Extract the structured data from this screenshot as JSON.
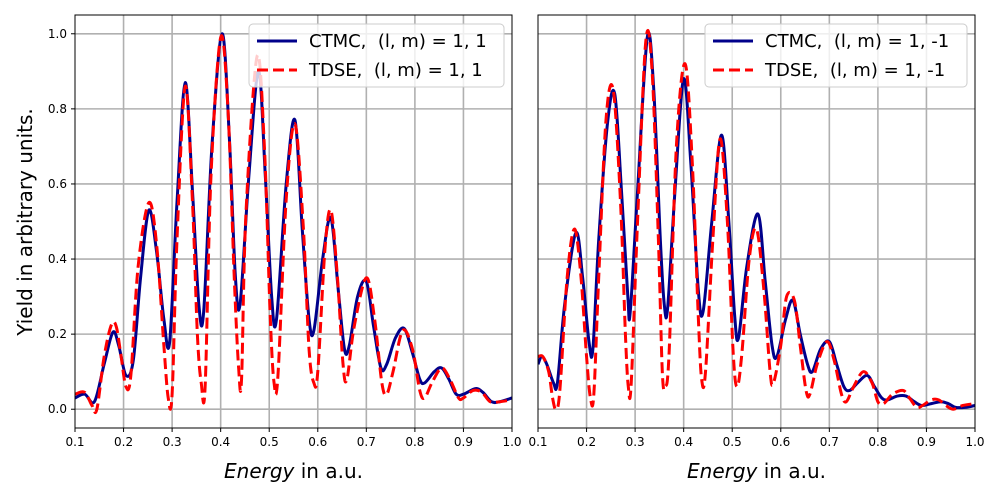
{
  "figure": {
    "ylabel": "Yield in arbitrary units."
  },
  "chart_data": [
    {
      "type": "line",
      "xlabel": {
        "italic": "Energy",
        "rest": " in a.u."
      },
      "ylabel": "Yield in arbitrary units.",
      "xlim": [
        0.1,
        1.0
      ],
      "ylim": [
        -0.05,
        1.05
      ],
      "xticks": [
        "0.1",
        "0.2",
        "0.3",
        "0.4",
        "0.5",
        "0.6",
        "0.7",
        "0.8",
        "0.9",
        "1.0"
      ],
      "yticks": [
        "0.0",
        "0.2",
        "0.4",
        "0.6",
        "0.8",
        "1.0"
      ],
      "grid": true,
      "legend_position": "top-right",
      "series": [
        {
          "name": "CTMC,  (l, m) = 1, 1",
          "color": "#00008b",
          "style": "solid",
          "points": [
            [
              0.1,
              0.03
            ],
            [
              0.12,
              0.04
            ],
            [
              0.14,
              0.02
            ],
            [
              0.16,
              0.12
            ],
            [
              0.178,
              0.205
            ],
            [
              0.19,
              0.17
            ],
            [
              0.205,
              0.09
            ],
            [
              0.22,
              0.13
            ],
            [
              0.235,
              0.35
            ],
            [
              0.252,
              0.53
            ],
            [
              0.268,
              0.42
            ],
            [
              0.283,
              0.24
            ],
            [
              0.295,
              0.18
            ],
            [
              0.31,
              0.55
            ],
            [
              0.327,
              0.87
            ],
            [
              0.342,
              0.58
            ],
            [
              0.355,
              0.28
            ],
            [
              0.365,
              0.26
            ],
            [
              0.382,
              0.7
            ],
            [
              0.403,
              1.0
            ],
            [
              0.418,
              0.72
            ],
            [
              0.43,
              0.36
            ],
            [
              0.44,
              0.28
            ],
            [
              0.458,
              0.62
            ],
            [
              0.478,
              0.9
            ],
            [
              0.492,
              0.62
            ],
            [
              0.505,
              0.3
            ],
            [
              0.515,
              0.24
            ],
            [
              0.535,
              0.6
            ],
            [
              0.553,
              0.77
            ],
            [
              0.568,
              0.48
            ],
            [
              0.582,
              0.24
            ],
            [
              0.592,
              0.21
            ],
            [
              0.61,
              0.4
            ],
            [
              0.627,
              0.51
            ],
            [
              0.642,
              0.32
            ],
            [
              0.655,
              0.16
            ],
            [
              0.665,
              0.17
            ],
            [
              0.682,
              0.3
            ],
            [
              0.7,
              0.34
            ],
            [
              0.715,
              0.22
            ],
            [
              0.73,
              0.11
            ],
            [
              0.742,
              0.12
            ],
            [
              0.76,
              0.19
            ],
            [
              0.778,
              0.215
            ],
            [
              0.795,
              0.15
            ],
            [
              0.81,
              0.08
            ],
            [
              0.82,
              0.07
            ],
            [
              0.84,
              0.1
            ],
            [
              0.855,
              0.11
            ],
            [
              0.87,
              0.08
            ],
            [
              0.885,
              0.04
            ],
            [
              0.9,
              0.04
            ],
            [
              0.925,
              0.055
            ],
            [
              0.94,
              0.045
            ],
            [
              0.958,
              0.02
            ],
            [
              0.975,
              0.02
            ],
            [
              1.0,
              0.03
            ]
          ]
        },
        {
          "name": "TDSE,  (l, m) = 1, 1",
          "color": "#ff0000",
          "style": "dashed",
          "points": [
            [
              0.1,
              0.04
            ],
            [
              0.12,
              0.045
            ],
            [
              0.135,
              0.01
            ],
            [
              0.145,
              0.0
            ],
            [
              0.16,
              0.14
            ],
            [
              0.175,
              0.225
            ],
            [
              0.185,
              0.22
            ],
            [
              0.195,
              0.14
            ],
            [
              0.205,
              0.06
            ],
            [
              0.215,
              0.09
            ],
            [
              0.23,
              0.38
            ],
            [
              0.252,
              0.55
            ],
            [
              0.268,
              0.44
            ],
            [
              0.283,
              0.17
            ],
            [
              0.292,
              0.03
            ],
            [
              0.3,
              0.04
            ],
            [
              0.31,
              0.45
            ],
            [
              0.327,
              0.86
            ],
            [
              0.342,
              0.55
            ],
            [
              0.352,
              0.2
            ],
            [
              0.36,
              0.07
            ],
            [
              0.368,
              0.06
            ],
            [
              0.38,
              0.62
            ],
            [
              0.4,
              0.99
            ],
            [
              0.415,
              0.8
            ],
            [
              0.428,
              0.35
            ],
            [
              0.437,
              0.11
            ],
            [
              0.443,
              0.08
            ],
            [
              0.452,
              0.52
            ],
            [
              0.475,
              0.94
            ],
            [
              0.49,
              0.7
            ],
            [
              0.502,
              0.25
            ],
            [
              0.51,
              0.07
            ],
            [
              0.518,
              0.09
            ],
            [
              0.535,
              0.56
            ],
            [
              0.553,
              0.76
            ],
            [
              0.57,
              0.49
            ],
            [
              0.582,
              0.16
            ],
            [
              0.592,
              0.07
            ],
            [
              0.6,
              0.1
            ],
            [
              0.615,
              0.43
            ],
            [
              0.627,
              0.53
            ],
            [
              0.64,
              0.36
            ],
            [
              0.652,
              0.12
            ],
            [
              0.66,
              0.08
            ],
            [
              0.675,
              0.22
            ],
            [
              0.7,
              0.35
            ],
            [
              0.717,
              0.24
            ],
            [
              0.732,
              0.07
            ],
            [
              0.742,
              0.04
            ],
            [
              0.755,
              0.1
            ],
            [
              0.775,
              0.21
            ],
            [
              0.795,
              0.16
            ],
            [
              0.81,
              0.05
            ],
            [
              0.82,
              0.03
            ],
            [
              0.835,
              0.07
            ],
            [
              0.855,
              0.11
            ],
            [
              0.872,
              0.08
            ],
            [
              0.89,
              0.03
            ],
            [
              0.9,
              0.03
            ],
            [
              0.92,
              0.05
            ],
            [
              0.938,
              0.045
            ],
            [
              0.955,
              0.02
            ],
            [
              0.975,
              0.02
            ],
            [
              1.0,
              0.025
            ]
          ]
        }
      ]
    },
    {
      "type": "line",
      "xlabel": {
        "italic": "Energy",
        "rest": " in a.u."
      },
      "xlim": [
        0.1,
        1.0
      ],
      "ylim": [
        -0.05,
        1.05
      ],
      "xticks": [
        "0.1",
        "0.2",
        "0.3",
        "0.4",
        "0.5",
        "0.6",
        "0.7",
        "0.8",
        "0.9",
        "1.0"
      ],
      "yticks": [],
      "grid": true,
      "legend_position": "top-right",
      "series": [
        {
          "name": "CTMC,  (l, m) = 1, -1",
          "color": "#00008b",
          "style": "solid",
          "points": [
            [
              0.1,
              0.12
            ],
            [
              0.108,
              0.14
            ],
            [
              0.118,
              0.12
            ],
            [
              0.132,
              0.07
            ],
            [
              0.14,
              0.07
            ],
            [
              0.155,
              0.28
            ],
            [
              0.178,
              0.47
            ],
            [
              0.192,
              0.35
            ],
            [
              0.205,
              0.18
            ],
            [
              0.213,
              0.16
            ],
            [
              0.225,
              0.45
            ],
            [
              0.243,
              0.76
            ],
            [
              0.258,
              0.84
            ],
            [
              0.272,
              0.58
            ],
            [
              0.285,
              0.3
            ],
            [
              0.29,
              0.26
            ],
            [
              0.305,
              0.58
            ],
            [
              0.325,
              0.99
            ],
            [
              0.338,
              0.86
            ],
            [
              0.352,
              0.45
            ],
            [
              0.36,
              0.28
            ],
            [
              0.367,
              0.27
            ],
            [
              0.382,
              0.58
            ],
            [
              0.4,
              0.88
            ],
            [
              0.415,
              0.65
            ],
            [
              0.43,
              0.32
            ],
            [
              0.44,
              0.26
            ],
            [
              0.458,
              0.5
            ],
            [
              0.478,
              0.73
            ],
            [
              0.493,
              0.5
            ],
            [
              0.505,
              0.25
            ],
            [
              0.513,
              0.19
            ],
            [
              0.53,
              0.38
            ],
            [
              0.553,
              0.52
            ],
            [
              0.568,
              0.34
            ],
            [
              0.582,
              0.17
            ],
            [
              0.592,
              0.14
            ],
            [
              0.61,
              0.24
            ],
            [
              0.625,
              0.29
            ],
            [
              0.64,
              0.2
            ],
            [
              0.655,
              0.12
            ],
            [
              0.665,
              0.1
            ],
            [
              0.682,
              0.16
            ],
            [
              0.7,
              0.18
            ],
            [
              0.715,
              0.12
            ],
            [
              0.73,
              0.06
            ],
            [
              0.742,
              0.05
            ],
            [
              0.758,
              0.07
            ],
            [
              0.778,
              0.09
            ],
            [
              0.793,
              0.06
            ],
            [
              0.808,
              0.03
            ],
            [
              0.82,
              0.025
            ],
            [
              0.84,
              0.035
            ],
            [
              0.858,
              0.035
            ],
            [
              0.875,
              0.02
            ],
            [
              0.89,
              0.01
            ],
            [
              0.91,
              0.015
            ],
            [
              0.93,
              0.02
            ],
            [
              0.945,
              0.015
            ],
            [
              0.96,
              0.005
            ],
            [
              0.98,
              0.005
            ],
            [
              1.0,
              0.01
            ]
          ]
        },
        {
          "name": "TDSE,  (l, m) = 1, -1",
          "color": "#ff0000",
          "style": "dashed",
          "points": [
            [
              0.1,
              0.14
            ],
            [
              0.11,
              0.14
            ],
            [
              0.122,
              0.1
            ],
            [
              0.13,
              0.03
            ],
            [
              0.137,
              0.0
            ],
            [
              0.145,
              0.05
            ],
            [
              0.16,
              0.35
            ],
            [
              0.175,
              0.48
            ],
            [
              0.188,
              0.36
            ],
            [
              0.2,
              0.14
            ],
            [
              0.208,
              0.03
            ],
            [
              0.215,
              0.04
            ],
            [
              0.225,
              0.35
            ],
            [
              0.24,
              0.77
            ],
            [
              0.255,
              0.85
            ],
            [
              0.27,
              0.55
            ],
            [
              0.28,
              0.2
            ],
            [
              0.286,
              0.06
            ],
            [
              0.292,
              0.07
            ],
            [
              0.305,
              0.5
            ],
            [
              0.322,
              0.98
            ],
            [
              0.335,
              0.9
            ],
            [
              0.348,
              0.45
            ],
            [
              0.356,
              0.1
            ],
            [
              0.362,
              0.06
            ],
            [
              0.37,
              0.15
            ],
            [
              0.385,
              0.7
            ],
            [
              0.403,
              0.92
            ],
            [
              0.418,
              0.65
            ],
            [
              0.43,
              0.25
            ],
            [
              0.437,
              0.08
            ],
            [
              0.445,
              0.1
            ],
            [
              0.46,
              0.45
            ],
            [
              0.475,
              0.72
            ],
            [
              0.49,
              0.5
            ],
            [
              0.502,
              0.15
            ],
            [
              0.51,
              0.06
            ],
            [
              0.52,
              0.15
            ],
            [
              0.535,
              0.4
            ],
            [
              0.55,
              0.48
            ],
            [
              0.565,
              0.32
            ],
            [
              0.578,
              0.1
            ],
            [
              0.585,
              0.07
            ],
            [
              0.6,
              0.17
            ],
            [
              0.612,
              0.3
            ],
            [
              0.628,
              0.29
            ],
            [
              0.64,
              0.17
            ],
            [
              0.652,
              0.05
            ],
            [
              0.66,
              0.04
            ],
            [
              0.675,
              0.12
            ],
            [
              0.695,
              0.18
            ],
            [
              0.71,
              0.13
            ],
            [
              0.725,
              0.04
            ],
            [
              0.735,
              0.02
            ],
            [
              0.75,
              0.06
            ],
            [
              0.77,
              0.1
            ],
            [
              0.788,
              0.07
            ],
            [
              0.8,
              0.02
            ],
            [
              0.812,
              0.015
            ],
            [
              0.83,
              0.04
            ],
            [
              0.852,
              0.05
            ],
            [
              0.865,
              0.03
            ],
            [
              0.88,
              0.005
            ],
            [
              0.892,
              0.01
            ],
            [
              0.91,
              0.025
            ],
            [
              0.925,
              0.025
            ],
            [
              0.94,
              0.01
            ],
            [
              0.955,
              0.0
            ],
            [
              0.975,
              0.01
            ],
            [
              1.0,
              0.015
            ]
          ]
        }
      ]
    }
  ]
}
